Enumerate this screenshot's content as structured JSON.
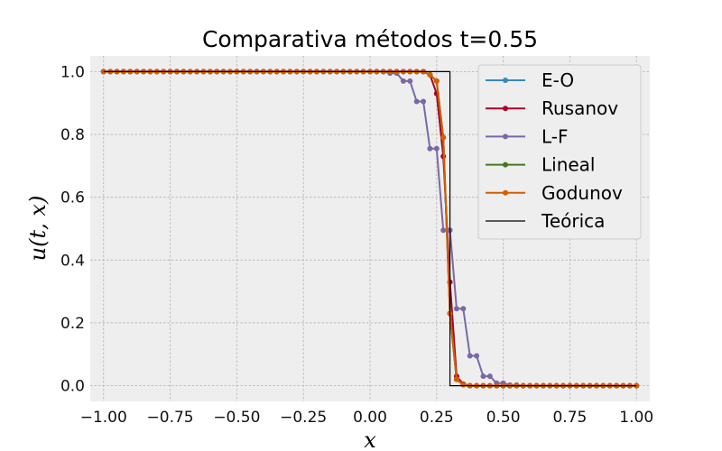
{
  "chart_data": {
    "type": "line",
    "title": "Comparativa métodos t=0.55",
    "xlabel": "x",
    "ylabel": "u(t, x)",
    "xlim": [
      -1.05,
      1.05
    ],
    "ylim": [
      -0.05,
      1.05
    ],
    "xticks": [
      -1.0,
      -0.75,
      -0.5,
      -0.25,
      0.0,
      0.25,
      0.5,
      0.75,
      1.0
    ],
    "xtick_labels": [
      "−1.00",
      "−0.75",
      "−0.50",
      "−0.25",
      "0.00",
      "0.25",
      "0.50",
      "0.75",
      "1.00"
    ],
    "yticks": [
      0.0,
      0.2,
      0.4,
      0.6,
      0.8,
      1.0
    ],
    "ytick_labels": [
      "0.0",
      "0.2",
      "0.4",
      "0.6",
      "0.8",
      "1.0"
    ],
    "grid": true,
    "legend_position": "top-right",
    "x": [
      -1.0,
      -0.975,
      -0.95,
      -0.925,
      -0.9,
      -0.875,
      -0.85,
      -0.825,
      -0.8,
      -0.775,
      -0.75,
      -0.725,
      -0.7,
      -0.675,
      -0.65,
      -0.625,
      -0.6,
      -0.575,
      -0.55,
      -0.525,
      -0.5,
      -0.475,
      -0.45,
      -0.425,
      -0.4,
      -0.375,
      -0.35,
      -0.325,
      -0.3,
      -0.275,
      -0.25,
      -0.225,
      -0.2,
      -0.175,
      -0.15,
      -0.125,
      -0.1,
      -0.075,
      -0.05,
      -0.025,
      0.0,
      0.025,
      0.05,
      0.075,
      0.1,
      0.125,
      0.15,
      0.175,
      0.2,
      0.225,
      0.25,
      0.275,
      0.3,
      0.325,
      0.35,
      0.375,
      0.4,
      0.425,
      0.45,
      0.475,
      0.5,
      0.525,
      0.55,
      0.575,
      0.6,
      0.625,
      0.65,
      0.675,
      0.7,
      0.725,
      0.75,
      0.775,
      0.8,
      0.825,
      0.85,
      0.875,
      0.9,
      0.925,
      0.95,
      0.975,
      1.0
    ],
    "series": [
      {
        "name": "E-O",
        "color": "#348ABD",
        "values": [
          1,
          1,
          1,
          1,
          1,
          1,
          1,
          1,
          1,
          1,
          1,
          1,
          1,
          1,
          1,
          1,
          1,
          1,
          1,
          1,
          1,
          1,
          1,
          1,
          1,
          1,
          1,
          1,
          1,
          1,
          1,
          1,
          1,
          1,
          1,
          1,
          1,
          1,
          1,
          1,
          1,
          1,
          1,
          1,
          1,
          1,
          1,
          1,
          1,
          0.99,
          0.97,
          0.79,
          0.23,
          0.02,
          0.003,
          0,
          0,
          0,
          0,
          0,
          0,
          0,
          0,
          0,
          0,
          0,
          0,
          0,
          0,
          0,
          0,
          0,
          0,
          0,
          0,
          0,
          0,
          0,
          0,
          0,
          0
        ]
      },
      {
        "name": "Rusanov",
        "color": "#A60628",
        "values": [
          1,
          1,
          1,
          1,
          1,
          1,
          1,
          1,
          1,
          1,
          1,
          1,
          1,
          1,
          1,
          1,
          1,
          1,
          1,
          1,
          1,
          1,
          1,
          1,
          1,
          1,
          1,
          1,
          1,
          1,
          1,
          1,
          1,
          1,
          1,
          1,
          1,
          1,
          1,
          1,
          1,
          1,
          1,
          1,
          1,
          1,
          1,
          1,
          1,
          0.99,
          0.93,
          0.73,
          0.33,
          0.03,
          0.005,
          0,
          0,
          0,
          0,
          0,
          0,
          0,
          0,
          0,
          0,
          0,
          0,
          0,
          0,
          0,
          0,
          0,
          0,
          0,
          0,
          0,
          0,
          0,
          0,
          0,
          0
        ]
      },
      {
        "name": "L-F",
        "color": "#7A68A6",
        "values": [
          1,
          1,
          1,
          1,
          1,
          1,
          1,
          1,
          1,
          1,
          1,
          1,
          1,
          1,
          1,
          1,
          1,
          1,
          1,
          1,
          1,
          1,
          1,
          1,
          1,
          1,
          1,
          1,
          1,
          1,
          1,
          1,
          1,
          1,
          1,
          1,
          1,
          1,
          1,
          1,
          1,
          1,
          1,
          0.995,
          0.995,
          0.97,
          0.97,
          0.905,
          0.905,
          0.755,
          0.755,
          0.495,
          0.495,
          0.245,
          0.245,
          0.095,
          0.095,
          0.03,
          0.03,
          0.008,
          0.008,
          0.002,
          0.002,
          0,
          0,
          0,
          0,
          0,
          0,
          0,
          0,
          0,
          0,
          0,
          0,
          0,
          0,
          0,
          0,
          0,
          0
        ]
      },
      {
        "name": "Lineal",
        "color": "#467821",
        "values": [
          1,
          1,
          1,
          1,
          1,
          1,
          1,
          1,
          1,
          1,
          1,
          1,
          1,
          1,
          1,
          1,
          1,
          1,
          1,
          1,
          1,
          1,
          1,
          1,
          1,
          1,
          1,
          1,
          1,
          1,
          1,
          1,
          1,
          1,
          1,
          1,
          1,
          1,
          1,
          1,
          1,
          1,
          1,
          1,
          1,
          1,
          1,
          1,
          1,
          0.99,
          0.97,
          0.79,
          0.23,
          0.02,
          0.003,
          0,
          0,
          0,
          0,
          0,
          0,
          0,
          0,
          0,
          0,
          0,
          0,
          0,
          0,
          0,
          0,
          0,
          0,
          0,
          0,
          0,
          0,
          0,
          0,
          0,
          0
        ]
      },
      {
        "name": "Godunov",
        "color": "#D55E00",
        "values": [
          1,
          1,
          1,
          1,
          1,
          1,
          1,
          1,
          1,
          1,
          1,
          1,
          1,
          1,
          1,
          1,
          1,
          1,
          1,
          1,
          1,
          1,
          1,
          1,
          1,
          1,
          1,
          1,
          1,
          1,
          1,
          1,
          1,
          1,
          1,
          1,
          1,
          1,
          1,
          1,
          1,
          1,
          1,
          1,
          1,
          1,
          1,
          1,
          1,
          0.99,
          0.97,
          0.79,
          0.23,
          0.02,
          0.003,
          0,
          0,
          0,
          0,
          0,
          0,
          0,
          0,
          0,
          0,
          0,
          0,
          0,
          0,
          0,
          0,
          0,
          0,
          0,
          0,
          0,
          0,
          0,
          0,
          0,
          0
        ]
      },
      {
        "name": "Teórica",
        "color": "#000000",
        "step": true,
        "x": [
          -1.0,
          0.275,
          0.275,
          0.3,
          0.3,
          1.0
        ],
        "values": [
          1,
          1,
          1,
          1,
          0,
          0
        ]
      }
    ]
  }
}
